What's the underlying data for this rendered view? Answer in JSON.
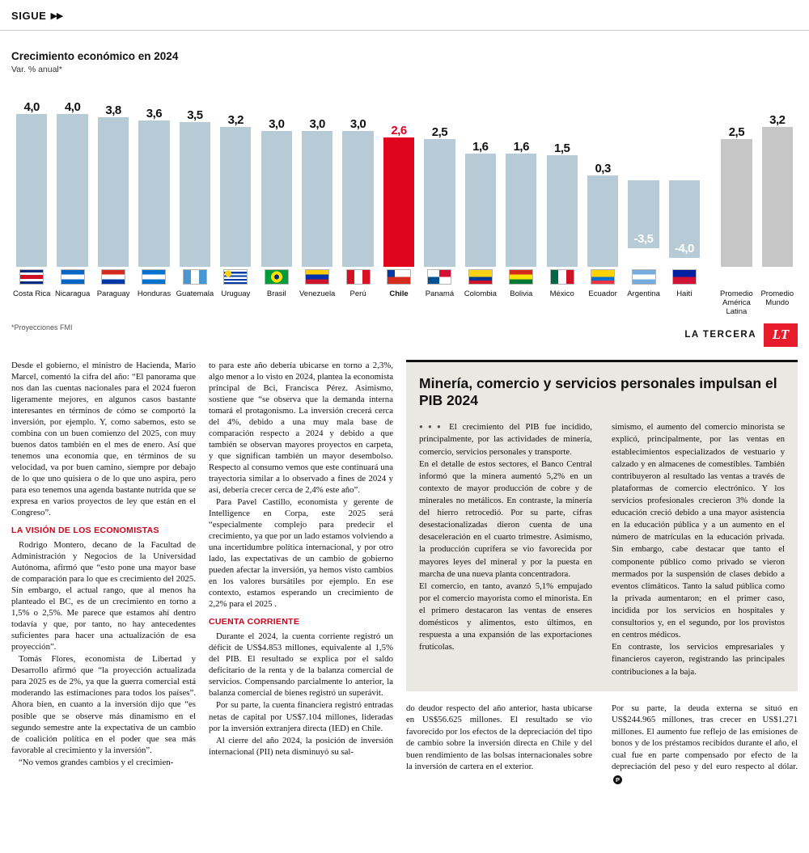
{
  "header": {
    "sigue": "SIGUE",
    "arrows": "▶▶"
  },
  "brand": {
    "name": "LA TERCERA",
    "logo": "LT",
    "logo_color": "#e81b2c"
  },
  "chart_data": {
    "type": "bar",
    "title": "Crecimiento económico en 2024",
    "subtitle": "Var. % anual*",
    "footnote": "*Proyecciones FMI",
    "categories": [
      "Costa Rica",
      "Nicaragua",
      "Paraguay",
      "Honduras",
      "Guatemala",
      "Uruguay",
      "Brasil",
      "Venezuela",
      "Perú",
      "Chile",
      "Panamá",
      "Colombia",
      "Bolivia",
      "México",
      "Ecuador",
      "Argentina",
      "Haití",
      "Promedio\nAmérica\nLatina",
      "Promedio\nMundo"
    ],
    "values": [
      4.0,
      4.0,
      3.8,
      3.6,
      3.5,
      3.2,
      3.0,
      3.0,
      3.0,
      2.6,
      2.5,
      1.6,
      1.6,
      1.5,
      0.3,
      -3.5,
      -4.0,
      2.5,
      3.2
    ],
    "labels": [
      "4,0",
      "4,0",
      "3,8",
      "3,6",
      "3,5",
      "3,2",
      "3,0",
      "3,0",
      "3,0",
      "2,6",
      "2,5",
      "1,6",
      "1,6",
      "1,5",
      "0,3",
      "-3,5",
      "-4,0",
      "2,5",
      "3,2"
    ],
    "flags": [
      "costa-rica",
      "nicaragua",
      "paraguay",
      "honduras",
      "guatemala",
      "uruguay",
      "brasil",
      "venezuela",
      "peru",
      "chile",
      "panama",
      "colombia",
      "bolivia",
      "mexico",
      "ecuador",
      "argentina",
      "haiti",
      null,
      null
    ],
    "highlight_index": 9,
    "average_indices": [
      17,
      18
    ],
    "ylim": [
      -4.5,
      4.5
    ],
    "grid": false,
    "legend": "none",
    "colors": {
      "bar": "#b6cbd6",
      "highlight": "#e0041f",
      "average": "#c6c6c6"
    }
  },
  "article": {
    "col1": {
      "p1": "Desde el gobierno, el ministro de Hacienda, Mario Marcel, comentó la cifra del año: “El panorama que nos dan las cuentas nacionales para el 2024 fueron ligeramente mejores, en algunos casos bastante interesantes en términos de cómo se comportó la inversión, por ejemplo. Y, como sabemos, esto se combina con un buen comienzo del 2025, con muy buenos datos también en el mes de enero. Así que tenemos una economía que, en términos de su velocidad, va por buen camino, siempre por debajo de lo que uno quisiera o de lo que uno aspira, pero para eso tenemos una agenda bastante nutrida que se expresa en varios proyectos de ley que están en el Congreso”.",
      "subhead": "LA VISIÓN DE LOS ECONOMISTAS",
      "p2": "Rodrigo Montero, decano de la Facultad de Administración y Negocios de la Universidad Autónoma, afirmó que “esto pone una mayor base de comparación para lo que es crecimiento del 2025. Sin embargo, el actual rango, que al menos ha planteado el BC, es de un crecimiento en torno a 1,5% o 2,5%. Me parece que estamos ahí dentro todavía y que, por tanto, no hay antecedentes suficientes para hacer una actualización de esa proyección”.",
      "p3": "Tomás Flores, economista de Libertad y Desarrollo afirmó que “la proyección actualizada para 2025 es de 2%, ya que la guerra comercial está moderando las estimaciones para todos los países”. Ahora bien, en cuanto a la inversión dijo que “es posible que se observe más dinamismo en el segundo semestre ante la expectativa de un cambio de coalición política en el poder que sea más favorable al crecimiento y la inversión”.",
      "p4": "“No vemos grandes cambios y el crecimien-"
    },
    "col2": {
      "p1": "to para este año debería ubicarse en torno a 2,3%, algo menor a lo visto en 2024, plantea la economista principal de Bci, Francisca Pérez. Asimismo, sostiene que “se observa que la demanda interna tomará el protagonismo. La inversión crecerá cerca del 4%, debido a una muy mala base de comparación respecto a 2024 y debido a que también se observan mayores proyectos en carpeta, y que significan también un mayor desembolso. Respecto al consumo vemos que este continuará una trayectoria similar a lo observado a fines de 2024 y así, debería crecer cerca de 2,4% este año”.",
      "p2": "Para Pavel Castillo, economista y gerente de Intelligence en Corpa, este 2025 será “especialmente complejo para predecir el crecimiento, ya que por un lado estamos volviendo a una incertidumbre política internacional, y por otro lado, las expectativas de un cambio de gobierno pueden afectar la inversión, ya hemos visto cambios en los valores bursátiles por ejemplo. En ese contexto, estamos esperando un crecimiento de 2,2% para el 2025 .",
      "subhead": "CUENTA CORRIENTE",
      "p3": "Durante el 2024, la cuenta corriente registró un déficit de US$4.853 millones, equivalente al 1,5% del PIB. El resultado se explica por el saldo deficitario de la renta y de la balanza comercial de servicios. Compensando parcialmente lo anterior, la balanza comercial de bienes registró un superávit.",
      "p4": "Por su parte, la cuenta financiera registró entradas netas de capital por US$7.104 millones, lideradas por la inversión extranjera directa (IED) en Chile.",
      "p5": "Al cierre del año 2024, la posición de inversión internacional (PII) neta disminuyó su sal-"
    },
    "col3": {
      "p1": "do deudor respecto del año anterior, hasta ubicarse en US$56.625 millones. El resultado se vio favorecido por los efectos de la depreciación del tipo de cambio sobre la inversión directa en Chile y del buen rendimiento de las bolsas internacionales sobre la inversión de cartera en el exterior."
    },
    "col4": {
      "p1": "Por su parte, la deuda externa se situó en US$244.965 millones, tras crecer en US$1.271 millones. El aumento fue reflejo de las emisiones de bonos y de los préstamos recibidos durante el año, el cual fue en parte compensado por efecto de la depreciación del peso y del euro respecto al dólar.",
      "end_mark": "P"
    }
  },
  "box": {
    "title": "Minería, comercio y servicios personales impulsan el PIB 2024",
    "lead_dots": "●●●",
    "colA": {
      "p1": "El crecimiento del PIB fue incidido, principalmente, por las actividades de minería, comercio, servicios personales y transporte.",
      "p2": "En el detalle de estos sectores, el Banco Central informó que la minera aumentó 5,2% en un contexto de mayor producción de cobre y de minerales no metálicos. En contraste, la minería del hierro retrocedió. Por su parte, cifras desestacionalizadas dieron cuenta de una desaceleración en el cuarto trimestre. Asimismo, la producción cuprífera se vio favorecida por mayores leyes del mineral y por la puesta en marcha de una nueva planta concentradora.",
      "p3": "El comercio, en tanto, avanzó 5,1% empujado por el comercio mayorista como el minorista. En el primero destacaron las ventas de enseres domésticos y alimentos, esto últimos, en respuesta a una expansión de las exportaciones frutícolas."
    },
    "colB": {
      "p1": "simismo, el aumento del comercio minorista se explicó, principalmente, por las ventas en establecimientos especializados de vestuario y calzado y en almacenes de comestibles. También contribuyeron al resultado las ventas a través de plataformas de comercio electrónico. Y los servicios profesionales crecieron 3% donde la educación creció debido a una mayor asistencia en la educación pública y a un aumento en el número de matrículas en la educación privada. Sin embargo, cabe destacar que tanto el componente público como privado se vieron mermados por la suspensión de clases debido a eventos climáticos. Tanto la salud pública como la privada aumentaron; en el primer caso, incidida por los servicios en hospitales y consultorios y, en el segundo, por los provistos en centros médicos.",
      "p2": "En contraste, los servicios empresariales y financieros cayeron, registrando las principales contribuciones a la baja."
    }
  }
}
